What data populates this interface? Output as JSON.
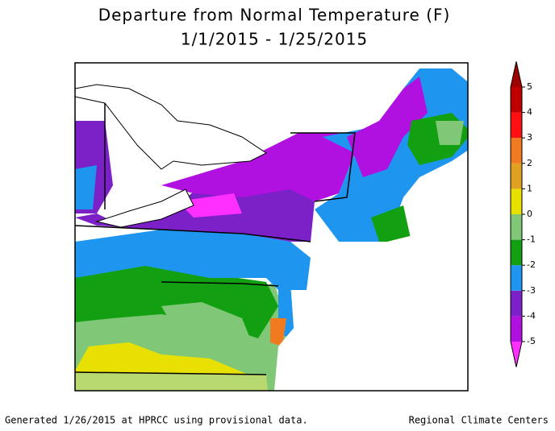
{
  "title": "Departure from Normal Temperature (F)",
  "subtitle": "1/1/2015 - 1/25/2015",
  "legend": {
    "ticks": [
      5,
      4,
      3,
      2,
      1,
      0,
      -1,
      -2,
      -3,
      -4,
      -5
    ],
    "colors": [
      "#ff30ff",
      "#b010e0",
      "#7c20c8",
      "#1e96f0",
      "#12a012",
      "#80c878",
      "#e8e000",
      "#e0a020",
      "#f07a20",
      "#ff1010",
      "#c00000",
      "#a00000"
    ]
  },
  "footer": {
    "left": "Generated 1/26/2015 at HPRCC using provisional data.",
    "right": "Regional Climate Centers"
  }
}
